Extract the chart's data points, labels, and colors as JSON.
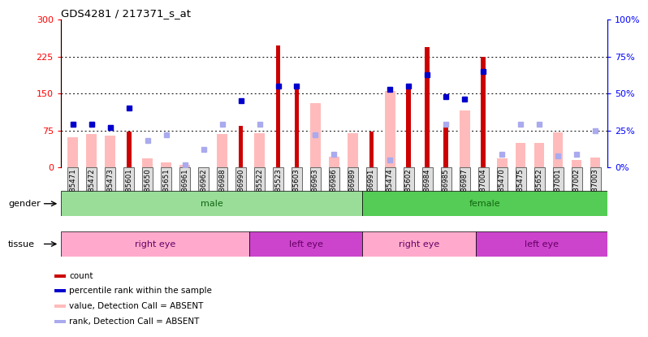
{
  "title": "GDS4281 / 217371_s_at",
  "samples": [
    "GSM685471",
    "GSM685472",
    "GSM685473",
    "GSM685601",
    "GSM685650",
    "GSM685651",
    "GSM686961",
    "GSM686962",
    "GSM686988",
    "GSM686990",
    "GSM685522",
    "GSM685523",
    "GSM685603",
    "GSM686963",
    "GSM686986",
    "GSM686989",
    "GSM686991",
    "GSM685474",
    "GSM685602",
    "GSM686984",
    "GSM686985",
    "GSM686987",
    "GSM687004",
    "GSM685470",
    "GSM685475",
    "GSM685652",
    "GSM687001",
    "GSM687002",
    "GSM687003"
  ],
  "count_values": [
    0,
    0,
    0,
    73,
    0,
    0,
    0,
    0,
    0,
    85,
    0,
    248,
    165,
    0,
    0,
    0,
    73,
    0,
    160,
    245,
    85,
    0,
    225,
    0,
    0,
    0,
    0,
    0,
    0
  ],
  "percentile_values": [
    29,
    29,
    27,
    40,
    0,
    0,
    0,
    0,
    0,
    45,
    0,
    55,
    55,
    0,
    0,
    0,
    0,
    53,
    55,
    63,
    48,
    46,
    65,
    0,
    0,
    0,
    0,
    0,
    0
  ],
  "absent_value_values": [
    62,
    68,
    65,
    0,
    18,
    10,
    5,
    0,
    68,
    0,
    70,
    0,
    0,
    130,
    22,
    70,
    0,
    155,
    0,
    0,
    0,
    115,
    0,
    18,
    50,
    50,
    72,
    15,
    20
  ],
  "absent_rank_values": [
    29,
    29,
    27,
    0,
    18,
    22,
    2,
    12,
    29,
    0,
    29,
    0,
    0,
    22,
    9,
    0,
    0,
    5,
    0,
    0,
    29,
    0,
    0,
    9,
    29,
    29,
    8,
    9,
    25
  ],
  "gender_groups": [
    {
      "label": "male",
      "start": 0,
      "end": 16,
      "color": "#99dd99"
    },
    {
      "label": "female",
      "start": 16,
      "end": 29,
      "color": "#55cc55"
    }
  ],
  "tissue_groups": [
    {
      "label": "right eye",
      "start": 0,
      "end": 10,
      "color": "#ffaacc"
    },
    {
      "label": "left eye",
      "start": 10,
      "end": 16,
      "color": "#cc44cc"
    },
    {
      "label": "right eye",
      "start": 16,
      "end": 22,
      "color": "#ffaacc"
    },
    {
      "label": "left eye",
      "start": 22,
      "end": 29,
      "color": "#cc44cc"
    }
  ],
  "ylim_left": [
    0,
    300
  ],
  "ylim_right": [
    0,
    100
  ],
  "yticks_left": [
    0,
    75,
    150,
    225,
    300
  ],
  "yticks_right": [
    0,
    25,
    50,
    75,
    100
  ],
  "ytick_labels_left": [
    "0",
    "75",
    "150",
    "225",
    "300"
  ],
  "ytick_labels_right": [
    "0%",
    "25%",
    "50%",
    "75%",
    "100%"
  ],
  "hlines": [
    75,
    150,
    225
  ],
  "bar_color_count": "#cc0000",
  "bar_color_absent_value": "#ffbbbb",
  "dot_color_percentile": "#0000cc",
  "dot_color_absent_rank": "#aaaaee",
  "legend_items": [
    {
      "label": "count",
      "color": "#cc0000"
    },
    {
      "label": "percentile rank within the sample",
      "color": "#0000cc"
    },
    {
      "label": "value, Detection Call = ABSENT",
      "color": "#ffbbbb"
    },
    {
      "label": "rank, Detection Call = ABSENT",
      "color": "#aaaaee"
    }
  ]
}
